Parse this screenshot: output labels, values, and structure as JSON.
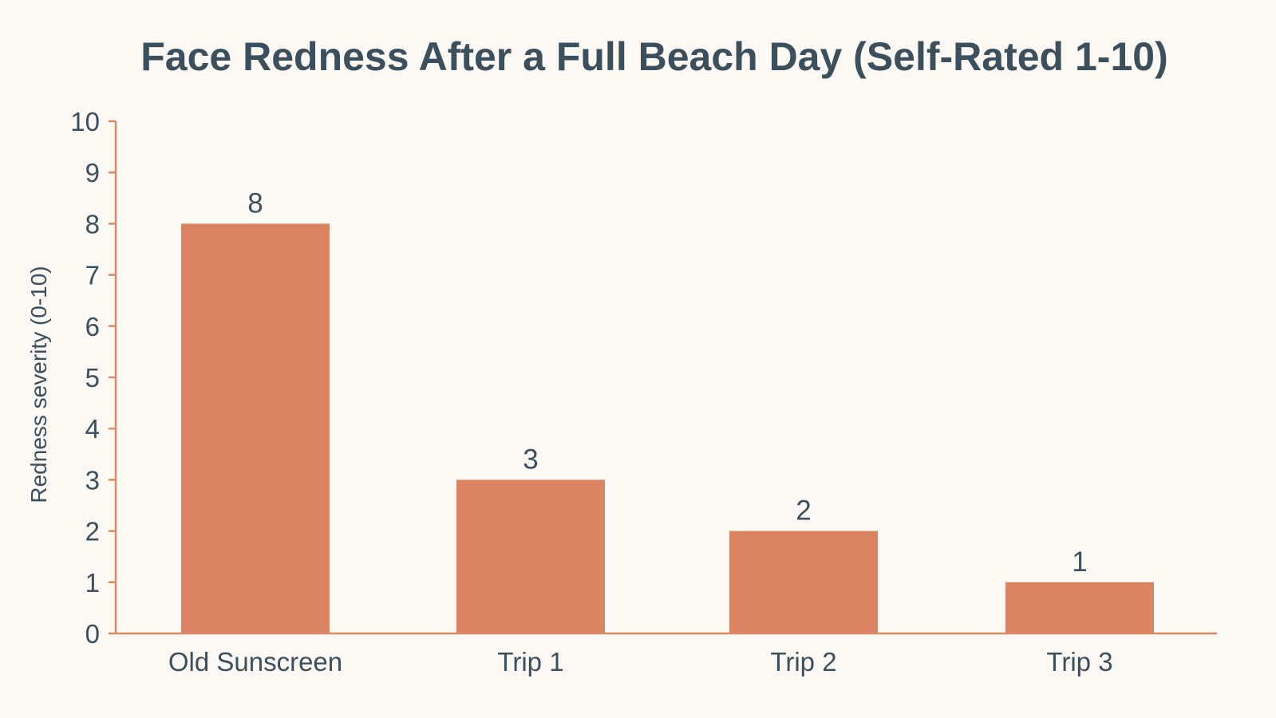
{
  "colors": {
    "background": "#fcf8f3",
    "bar": "#db8462",
    "axis": "#d98a66",
    "text": "#3b4f5c"
  },
  "chart_data": {
    "type": "bar",
    "title": "Face Redness After a Full Beach Day (Self-Rated 1-10)",
    "xlabel": "",
    "ylabel": "Redness severity (0-10)",
    "categories": [
      "Old Sunscreen",
      "Trip 1",
      "Trip 2",
      "Trip 3"
    ],
    "values": [
      8,
      3,
      2,
      1
    ],
    "data_labels": [
      "8",
      "3",
      "2",
      "1"
    ],
    "ylim": [
      0,
      10
    ],
    "yticks": [
      "0",
      "1",
      "2",
      "3",
      "4",
      "5",
      "6",
      "7",
      "8",
      "9",
      "10"
    ],
    "grid": false,
    "legend": "none"
  }
}
